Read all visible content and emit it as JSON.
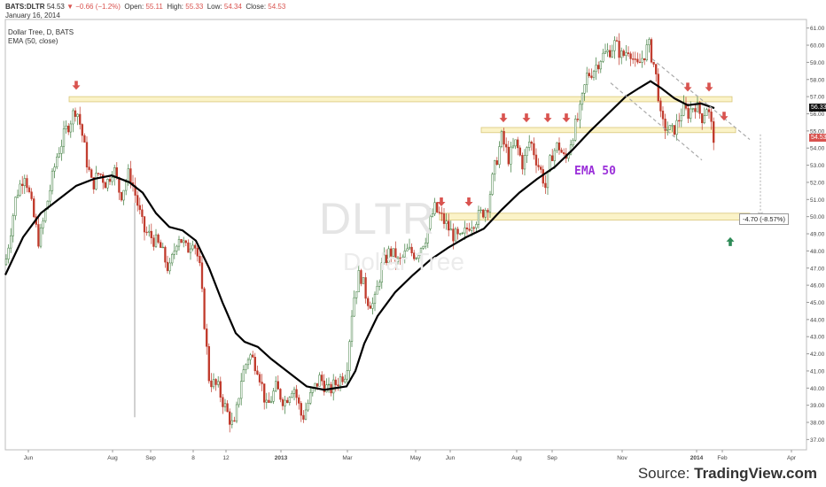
{
  "header": {
    "ticker": "BATS:DLTR",
    "last": "54.53",
    "change": "−0.66 (−1.2%)",
    "open_label": "Open:",
    "open": "55.11",
    "high_label": "High:",
    "high": "55.33",
    "low_label": "Low:",
    "low": "54.34",
    "close_label": "Close:",
    "close": "54.53",
    "date": "January 16, 2014",
    "series_name": "Dollar Tree, D, BATS",
    "indicator": "EMA (50, close)"
  },
  "watermark": {
    "symbol": "DLTR",
    "name": "Dollar Tree"
  },
  "annotations": {
    "ema_label": "EMA 50",
    "measure_label": "-4.70 (-8.57%)",
    "ema_tag": "56.33",
    "price_tag": "54.53"
  },
  "source": {
    "prefix": "Source: ",
    "brand": "TradingView.com"
  },
  "colors": {
    "up": "#3a7a3a",
    "down": "#c0392b",
    "ema": "#000000",
    "zone_fill": "#fbf3c8",
    "zone_border": "#d9c77a",
    "arrow_red": "#d9534f",
    "arrow_green": "#2e8b57",
    "ema_label": "#9b30d9"
  },
  "chart_data": {
    "type": "line",
    "title": "Dollar Tree, D, BATS",
    "x_tick_labels": [
      "Jun",
      "Aug",
      "Sep",
      "8",
      "12",
      "2013",
      "Mar",
      "May",
      "Jun",
      "Aug",
      "Sep",
      "Nov",
      "2014",
      "Feb",
      "Apr"
    ],
    "y_ticks": [
      "61.00",
      "60.00",
      "59.00",
      "58.00",
      "57.00",
      "56.00",
      "55.00",
      "54.00",
      "53.00",
      "52.00",
      "51.00",
      "50.00",
      "49.00",
      "48.00",
      "47.00",
      "46.00",
      "45.00",
      "44.00",
      "43.00",
      "42.00",
      "41.00",
      "40.00",
      "39.00",
      "38.00",
      "37.00"
    ],
    "ylim": [
      36.4,
      61.5
    ],
    "price_path": [
      {
        "x": 0,
        "y": 47.2
      },
      {
        "x": 12,
        "y": 51.2
      },
      {
        "x": 22,
        "y": 52.6
      },
      {
        "x": 30,
        "y": 50.5
      },
      {
        "x": 38,
        "y": 48.5
      },
      {
        "x": 48,
        "y": 51.0
      },
      {
        "x": 58,
        "y": 53.5
      },
      {
        "x": 68,
        "y": 55.0
      },
      {
        "x": 75,
        "y": 55.8
      },
      {
        "x": 80,
        "y": 56.4
      },
      {
        "x": 86,
        "y": 55.0
      },
      {
        "x": 92,
        "y": 53.2
      },
      {
        "x": 98,
        "y": 51.8
      },
      {
        "x": 106,
        "y": 52.6
      },
      {
        "x": 114,
        "y": 51.9
      },
      {
        "x": 122,
        "y": 52.9
      },
      {
        "x": 130,
        "y": 51.2
      },
      {
        "x": 140,
        "y": 52.6
      },
      {
        "x": 148,
        "y": 51.0
      },
      {
        "x": 156,
        "y": 49.2
      },
      {
        "x": 165,
        "y": 48.8
      },
      {
        "x": 175,
        "y": 48.2
      },
      {
        "x": 185,
        "y": 46.8
      },
      {
        "x": 195,
        "y": 49.0
      },
      {
        "x": 205,
        "y": 48.0
      },
      {
        "x": 212,
        "y": 48.8
      },
      {
        "x": 219,
        "y": 47.2
      },
      {
        "x": 224,
        "y": 44.2
      },
      {
        "x": 230,
        "y": 40.5
      },
      {
        "x": 240,
        "y": 40.0
      },
      {
        "x": 250,
        "y": 38.6
      },
      {
        "x": 258,
        "y": 37.6
      },
      {
        "x": 266,
        "y": 40.5
      },
      {
        "x": 275,
        "y": 42.0
      },
      {
        "x": 285,
        "y": 41.2
      },
      {
        "x": 295,
        "y": 38.8
      },
      {
        "x": 305,
        "y": 40.0
      },
      {
        "x": 315,
        "y": 39.2
      },
      {
        "x": 325,
        "y": 40.2
      },
      {
        "x": 335,
        "y": 38.2
      },
      {
        "x": 345,
        "y": 39.6
      },
      {
        "x": 355,
        "y": 40.6
      },
      {
        "x": 365,
        "y": 39.8
      },
      {
        "x": 375,
        "y": 40.4
      },
      {
        "x": 385,
        "y": 41.0
      },
      {
        "x": 392,
        "y": 45.0
      },
      {
        "x": 400,
        "y": 46.8
      },
      {
        "x": 408,
        "y": 45.2
      },
      {
        "x": 416,
        "y": 44.8
      },
      {
        "x": 424,
        "y": 47.0
      },
      {
        "x": 434,
        "y": 48.0
      },
      {
        "x": 444,
        "y": 47.3
      },
      {
        "x": 454,
        "y": 48.0
      },
      {
        "x": 464,
        "y": 47.8
      },
      {
        "x": 474,
        "y": 48.8
      },
      {
        "x": 484,
        "y": 50.5
      },
      {
        "x": 494,
        "y": 49.8
      },
      {
        "x": 504,
        "y": 49.0
      },
      {
        "x": 514,
        "y": 48.6
      },
      {
        "x": 524,
        "y": 49.6
      },
      {
        "x": 534,
        "y": 50.0
      },
      {
        "x": 544,
        "y": 50.6
      },
      {
        "x": 552,
        "y": 52.8
      },
      {
        "x": 560,
        "y": 54.6
      },
      {
        "x": 568,
        "y": 53.4
      },
      {
        "x": 576,
        "y": 54.3
      },
      {
        "x": 584,
        "y": 53.0
      },
      {
        "x": 592,
        "y": 54.5
      },
      {
        "x": 600,
        "y": 53.2
      },
      {
        "x": 606,
        "y": 52.4
      },
      {
        "x": 610,
        "y": 51.6
      },
      {
        "x": 616,
        "y": 53.6
      },
      {
        "x": 624,
        "y": 54.2
      },
      {
        "x": 632,
        "y": 53.2
      },
      {
        "x": 640,
        "y": 54.8
      },
      {
        "x": 648,
        "y": 56.0
      },
      {
        "x": 656,
        "y": 58.2
      },
      {
        "x": 664,
        "y": 58.6
      },
      {
        "x": 672,
        "y": 59.3
      },
      {
        "x": 680,
        "y": 59.6
      },
      {
        "x": 688,
        "y": 60.1
      },
      {
        "x": 696,
        "y": 59.3
      },
      {
        "x": 704,
        "y": 59.9
      },
      {
        "x": 712,
        "y": 58.6
      },
      {
        "x": 720,
        "y": 59.4
      },
      {
        "x": 726,
        "y": 60.0
      },
      {
        "x": 732,
        "y": 58.8
      },
      {
        "x": 736,
        "y": 57.6
      },
      {
        "x": 740,
        "y": 55.4
      },
      {
        "x": 746,
        "y": 55.2
      },
      {
        "x": 752,
        "y": 54.9
      },
      {
        "x": 758,
        "y": 55.4
      },
      {
        "x": 764,
        "y": 56.3
      },
      {
        "x": 770,
        "y": 56.0
      },
      {
        "x": 778,
        "y": 56.6
      },
      {
        "x": 786,
        "y": 55.8
      },
      {
        "x": 792,
        "y": 56.5
      },
      {
        "x": 796,
        "y": 55.4
      },
      {
        "x": 800,
        "y": 54.5
      }
    ],
    "ema50_path": [
      {
        "x": 0,
        "y": 46.6
      },
      {
        "x": 20,
        "y": 48.8
      },
      {
        "x": 40,
        "y": 50.2
      },
      {
        "x": 60,
        "y": 51.0
      },
      {
        "x": 80,
        "y": 51.8
      },
      {
        "x": 100,
        "y": 52.2
      },
      {
        "x": 120,
        "y": 52.4
      },
      {
        "x": 140,
        "y": 52.0
      },
      {
        "x": 155,
        "y": 51.4
      },
      {
        "x": 170,
        "y": 50.2
      },
      {
        "x": 185,
        "y": 49.4
      },
      {
        "x": 200,
        "y": 49.2
      },
      {
        "x": 215,
        "y": 48.6
      },
      {
        "x": 230,
        "y": 47.0
      },
      {
        "x": 245,
        "y": 45.0
      },
      {
        "x": 260,
        "y": 43.2
      },
      {
        "x": 270,
        "y": 42.7
      },
      {
        "x": 285,
        "y": 42.4
      },
      {
        "x": 300,
        "y": 41.7
      },
      {
        "x": 320,
        "y": 40.9
      },
      {
        "x": 340,
        "y": 40.1
      },
      {
        "x": 360,
        "y": 39.9
      },
      {
        "x": 385,
        "y": 40.1
      },
      {
        "x": 395,
        "y": 41.0
      },
      {
        "x": 405,
        "y": 42.6
      },
      {
        "x": 420,
        "y": 44.2
      },
      {
        "x": 440,
        "y": 45.6
      },
      {
        "x": 460,
        "y": 46.6
      },
      {
        "x": 480,
        "y": 47.5
      },
      {
        "x": 500,
        "y": 48.2
      },
      {
        "x": 520,
        "y": 48.8
      },
      {
        "x": 540,
        "y": 49.3
      },
      {
        "x": 560,
        "y": 50.4
      },
      {
        "x": 580,
        "y": 51.4
      },
      {
        "x": 600,
        "y": 52.2
      },
      {
        "x": 620,
        "y": 52.9
      },
      {
        "x": 640,
        "y": 53.9
      },
      {
        "x": 660,
        "y": 55.0
      },
      {
        "x": 680,
        "y": 56.0
      },
      {
        "x": 700,
        "y": 57.0
      },
      {
        "x": 715,
        "y": 57.5
      },
      {
        "x": 728,
        "y": 57.9
      },
      {
        "x": 740,
        "y": 57.5
      },
      {
        "x": 755,
        "y": 56.9
      },
      {
        "x": 770,
        "y": 56.5
      },
      {
        "x": 785,
        "y": 56.6
      },
      {
        "x": 800,
        "y": 56.33
      }
    ],
    "resistance_zones": [
      {
        "x_start": 72,
        "x_end": 820,
        "y_low": 56.7,
        "y_high": 57.0
      },
      {
        "x_start": 537,
        "x_end": 824,
        "y_low": 54.9,
        "y_high": 55.2
      },
      {
        "x_start": 490,
        "x_end": 840,
        "y_low": 49.8,
        "y_high": 50.2
      }
    ],
    "down_arrows": [
      {
        "x": 80,
        "y": 57.4
      },
      {
        "x": 562,
        "y": 55.5
      },
      {
        "x": 588,
        "y": 55.5
      },
      {
        "x": 612,
        "y": 55.5
      },
      {
        "x": 633,
        "y": 55.5
      },
      {
        "x": 492,
        "y": 50.6
      },
      {
        "x": 523,
        "y": 50.6
      },
      {
        "x": 770,
        "y": 57.3
      },
      {
        "x": 794,
        "y": 57.3
      },
      {
        "x": 811,
        "y": 55.6
      }
    ],
    "up_arrows": [
      {
        "x": 818,
        "y": 48.8
      }
    ],
    "channel_lines": [
      {
        "x1": 683,
        "y1": 57.8,
        "x2": 786,
        "y2": 53.3
      },
      {
        "x1": 730,
        "y1": 59.2,
        "x2": 840,
        "y2": 54.5
      }
    ],
    "measure": {
      "x": 858,
      "y_from": 54.8,
      "y_to": 50.1,
      "label": "-4.70 (-8.57%)"
    }
  }
}
